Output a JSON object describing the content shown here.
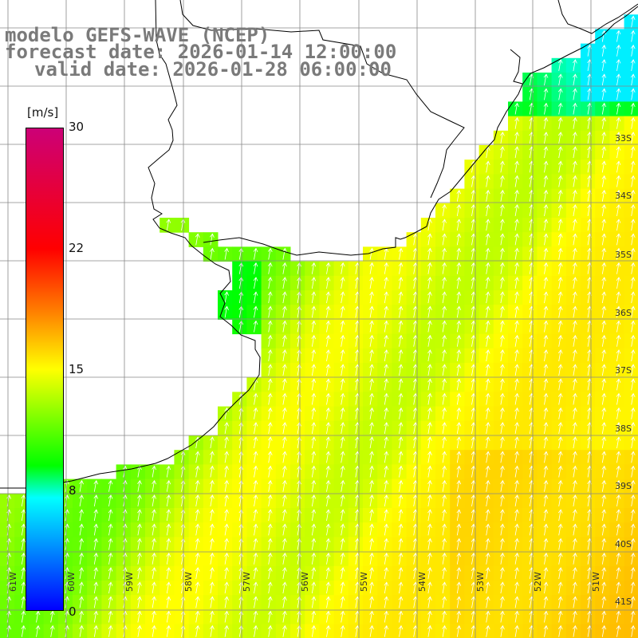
{
  "title": {
    "line1": "modelo GEFS-WAVE (NCEP)",
    "line2": "forecast date: 2026-01-14 12:00:00",
    "line3": "valid date: 2026-01-28 06:00:00"
  },
  "colorbar": {
    "unit": "[m/s]",
    "labels": [
      "30",
      "22",
      "15",
      "8",
      "0"
    ],
    "values": [
      30,
      22,
      15,
      8,
      0
    ],
    "colors": [
      "#cc0077",
      "#ff0000",
      "#ff7a00",
      "#ffff00",
      "#00ff00",
      "#00ffff",
      "#0000ff"
    ]
  },
  "map": {
    "lat_labels": [
      "33S",
      "34S",
      "35S",
      "36S",
      "37S",
      "38S",
      "39S",
      "40S",
      "41S"
    ],
    "lon_labels": [
      "61W",
      "60W",
      "59W",
      "58W",
      "57W",
      "56W",
      "55W",
      "54W",
      "53W",
      "52W",
      "51W"
    ],
    "land_color": "#ffffff",
    "arrow_color": "#ffffff",
    "grid_color": "#888888",
    "coast_color": "#000000"
  }
}
